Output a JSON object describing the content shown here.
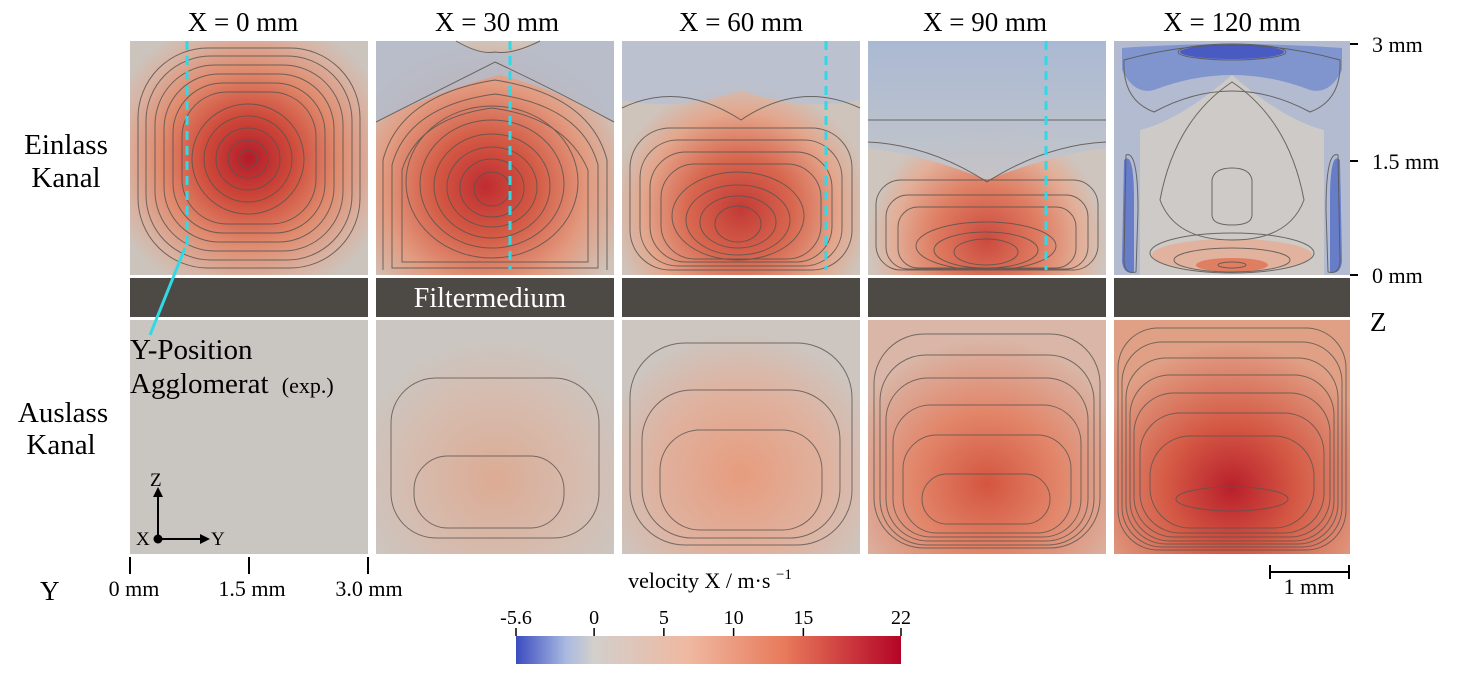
{
  "columns": [
    {
      "label": "X = 0 mm"
    },
    {
      "label": "X = 30 mm"
    },
    {
      "label": "X = 60 mm"
    },
    {
      "label": "X = 90 mm"
    },
    {
      "label": "X = 120 mm"
    }
  ],
  "row_labels": {
    "inlet_line1": "Einlass",
    "inlet_line2": "Kanal",
    "outlet_line1": "Auslass",
    "outlet_line2": "Kanal"
  },
  "filter_label": "Filtermedium",
  "annotation": {
    "line1": "Y-Position",
    "line2": "Agglomerat",
    "line2_suffix": "(exp.)"
  },
  "z_axis": {
    "title": "Z",
    "ticks": [
      "3 mm",
      "1.5 mm",
      "0 mm"
    ]
  },
  "y_axis": {
    "title": "Y",
    "ticks": [
      "0 mm",
      "1.5 mm",
      "3.0 mm"
    ]
  },
  "triad": {
    "z": "Z",
    "x": "X",
    "y": "Y"
  },
  "scale_bar": {
    "label": "1 mm"
  },
  "colorbar": {
    "title": "velocity X / m·s",
    "title_exp": "−1",
    "min": -5.6,
    "max": 22,
    "ticks": [
      {
        "value": -5.6,
        "label": "-5.6"
      },
      {
        "value": 0,
        "label": "0"
      },
      {
        "value": 5,
        "label": "5"
      },
      {
        "value": 10,
        "label": "10"
      },
      {
        "value": 15,
        "label": "15"
      },
      {
        "value": 22,
        "label": "22"
      }
    ],
    "colors": {
      "min": "#3b4cc0",
      "zero": "#c9c7c4",
      "mid": "#e8896a",
      "max": "#b40426"
    }
  },
  "colors": {
    "background_field": "#c9c6c1",
    "filter_medium": "#4d4945",
    "marker_line": "#2fd9e6",
    "contour": "#5a5550"
  }
}
